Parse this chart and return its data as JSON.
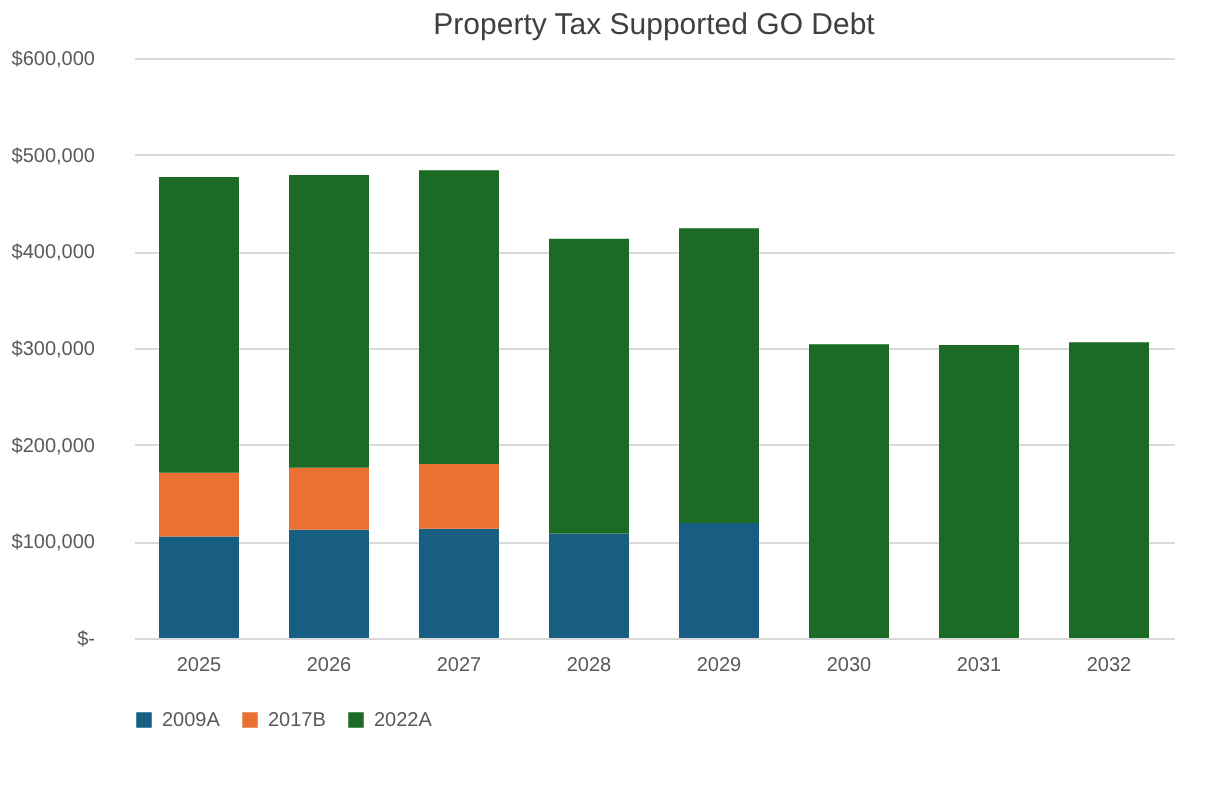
{
  "chart_data": {
    "type": "bar",
    "title": "Property Tax Supported GO Debt",
    "stacked": true,
    "categories": [
      "2025",
      "2026",
      "2027",
      "2028",
      "2029",
      "2030",
      "2031",
      "2032"
    ],
    "series": [
      {
        "name": "2009A",
        "color": "#175e82",
        "values": [
          105000,
          112000,
          113000,
          108000,
          119000,
          0,
          0,
          0
        ]
      },
      {
        "name": "2017B",
        "color": "#e97132",
        "values": [
          66000,
          64000,
          67000,
          0,
          0,
          0,
          0,
          0
        ]
      },
      {
        "name": "2022A",
        "color": "#1b6b25",
        "values": [
          306000,
          303000,
          304000,
          305000,
          305000,
          304000,
          303000,
          306000
        ]
      }
    ],
    "ylim": [
      0,
      600000
    ],
    "yticks": [
      {
        "value": 0,
        "label": "$-"
      },
      {
        "value": 100000,
        "label": "$100,000"
      },
      {
        "value": 200000,
        "label": "$200,000"
      },
      {
        "value": 300000,
        "label": "$300,000"
      },
      {
        "value": 400000,
        "label": "$400,000"
      },
      {
        "value": 500000,
        "label": "$500,000"
      },
      {
        "value": 600000,
        "label": "$600,000"
      }
    ],
    "grid": "y",
    "legend": "bottom"
  }
}
